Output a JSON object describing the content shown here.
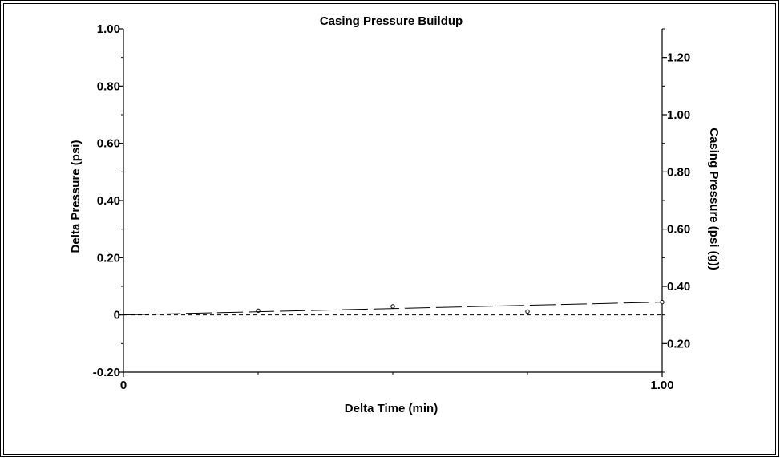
{
  "chart_data": {
    "type": "scatter",
    "title": "Casing Pressure Buildup",
    "xlabel": "Delta Time (min)",
    "ylabel": "Delta Pressure (psi)",
    "y2label": "Casing Pressure (psi (g))",
    "xlim": [
      0,
      1.0
    ],
    "ylim": [
      -0.2,
      1.0
    ],
    "y2lim": [
      0.1,
      1.3
    ],
    "x_ticks": [
      {
        "value": 0,
        "label": "0"
      },
      {
        "value": 1.0,
        "label": "1.00"
      }
    ],
    "y_ticks": [
      {
        "value": -0.2,
        "label": "-0.20"
      },
      {
        "value": 0,
        "label": "0"
      },
      {
        "value": 0.2,
        "label": "0.20"
      },
      {
        "value": 0.4,
        "label": "0.40"
      },
      {
        "value": 0.6,
        "label": "0.60"
      },
      {
        "value": 0.8,
        "label": "0.80"
      },
      {
        "value": 1.0,
        "label": "1.00"
      }
    ],
    "y2_ticks": [
      {
        "value": 0.2,
        "label": "0.20"
      },
      {
        "value": 0.4,
        "label": "0.40"
      },
      {
        "value": 0.6,
        "label": "0.60"
      },
      {
        "value": 0.8,
        "label": "0.80"
      },
      {
        "value": 1.0,
        "label": "1.00"
      },
      {
        "value": 1.2,
        "label": "1.20"
      }
    ],
    "series": [
      {
        "style": "open circle markers",
        "x": [
          0.25,
          0.5,
          0.75,
          1.0
        ],
        "y": [
          0.015,
          0.03,
          0.012,
          0.045
        ]
      },
      {
        "style": "long dash line",
        "x": [
          0,
          1.0
        ],
        "y": [
          0,
          0.045
        ]
      },
      {
        "style": "short dash line",
        "x": [
          0,
          1.0
        ],
        "y": [
          0,
          0
        ]
      }
    ],
    "grid": false,
    "legend": "none",
    "colors": {
      "ink": "#000000",
      "background": "#ffffff"
    }
  }
}
